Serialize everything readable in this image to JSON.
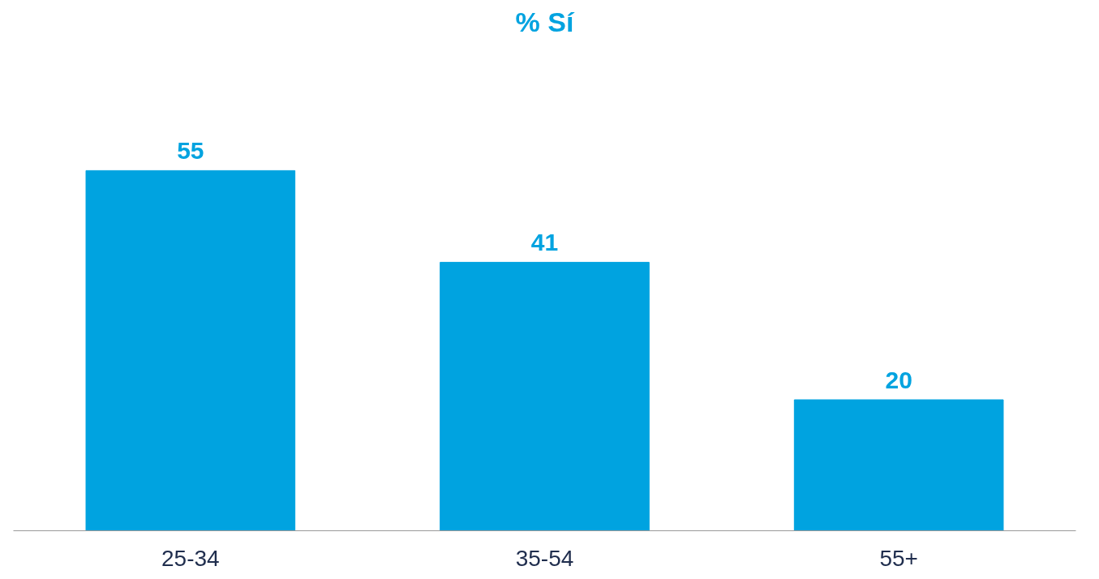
{
  "chart_data": {
    "type": "bar",
    "title": "% Sí",
    "categories": [
      "25-34",
      "35-54",
      "55+"
    ],
    "values": [
      55,
      41,
      20
    ],
    "color": "#00a3e0",
    "data_labels": true,
    "grid": false
  }
}
